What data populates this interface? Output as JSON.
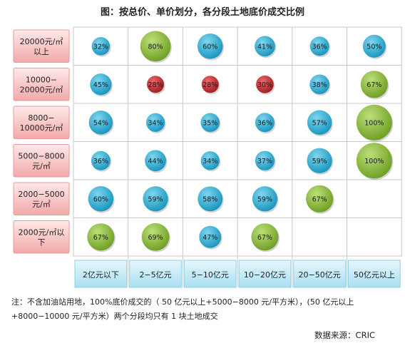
{
  "chart_data": {
    "type": "bubble-grid",
    "title": "图：按总价、单价划分，各分段土地底价成交比例",
    "x_categories": [
      "2亿元以下",
      "2−5亿元",
      "5−10亿元",
      "10−20亿元",
      "20−50亿元",
      "50亿元以上"
    ],
    "y_categories": [
      [
        "20000元/㎡",
        "以上"
      ],
      [
        "10000−",
        "20000元/㎡"
      ],
      [
        "8000−",
        "10000元/㎡"
      ],
      [
        "5000−8000",
        "元/㎡"
      ],
      [
        "2000−5000",
        "元/㎡"
      ],
      [
        "2000元/㎡以",
        "下"
      ]
    ],
    "values": [
      [
        32,
        80,
        60,
        41,
        36,
        50
      ],
      [
        45,
        28,
        28,
        30,
        38,
        67
      ],
      [
        54,
        34,
        35,
        36,
        57,
        100
      ],
      [
        36,
        44,
        34,
        37,
        59,
        100
      ],
      [
        60,
        59,
        58,
        59,
        67,
        null
      ],
      [
        67,
        69,
        47,
        67,
        null,
        null
      ]
    ],
    "unit": "%",
    "colors": {
      "blue": "#2bb1d6",
      "red": "#c0282c",
      "green": "#8cba3a"
    }
  },
  "note": {
    "line1": "注：不含加油站用地，100%底价成交的（ 50 亿元以上+5000−8000 元/平方米），(50 亿元以上",
    "line2": "+8000−10000 元/平方米）两个分段均只有 1 块土地成交"
  },
  "source": "数据来源：CRIC"
}
